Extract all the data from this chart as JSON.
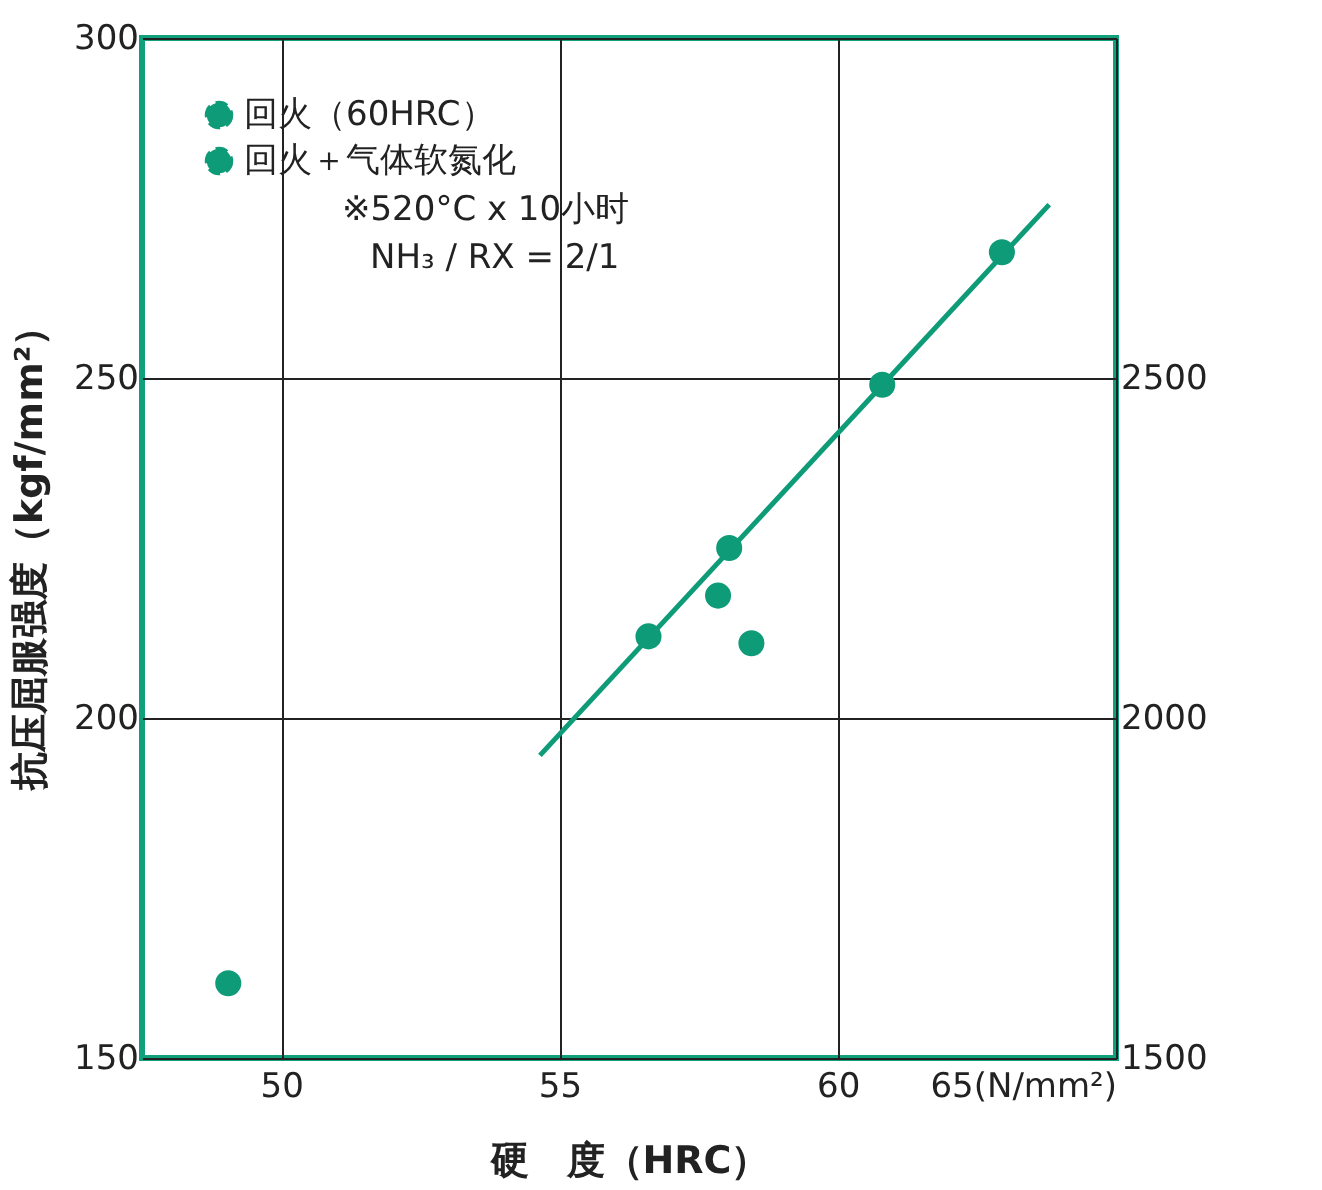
{
  "chart_data": {
    "type": "scatter",
    "xlabel": "硬　度（HRC）",
    "ylabel": "抗压屈服强度（kgf/mm²）",
    "xlim": [
      47.5,
      65
    ],
    "xticks": [
      50,
      55,
      60,
      {
        "value": 65,
        "label": "65(N/mm²)"
      }
    ],
    "ylim": [
      150,
      300
    ],
    "yticks": [
      150,
      200,
      250,
      300
    ],
    "y2lim": [
      1500,
      3000
    ],
    "y2ticks": [
      1500,
      2000,
      2500
    ],
    "grid": true,
    "legend": "top left",
    "marker": "circle",
    "series": [
      {
        "name": "回火（60HRC）",
        "color": "#0e9b78",
        "x": [
          49.05,
          56.6,
          57.85,
          58.05,
          58.45,
          60.8,
          62.95
        ],
        "values": [
          161,
          212,
          218,
          225,
          211,
          249,
          268.5
        ]
      },
      {
        "name": "回火＋气体软氮化",
        "color": "#0e9b78",
        "type": "scatter",
        "marker": "circle",
        "line_style": "dashed"
      },
      {
        "type": "line",
        "color": "#0e9b78",
        "marker": "none",
        "x": [
          54.65,
          63.8
        ],
        "values": [
          194.5,
          275.5
        ]
      }
    ],
    "annotations": [
      "※520°C x 10小时",
      "NH₃ / RX = 2/1"
    ]
  }
}
